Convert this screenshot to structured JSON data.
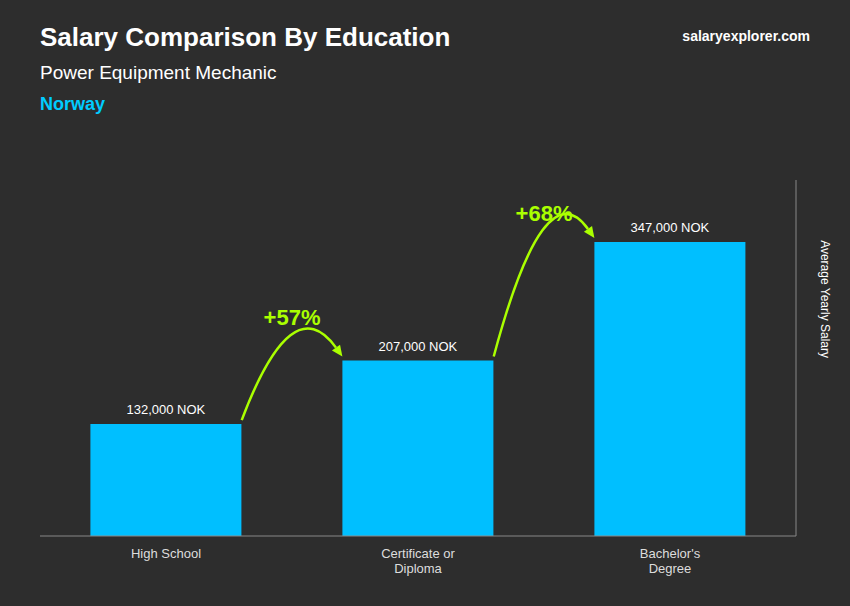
{
  "chart_data": {
    "type": "bar",
    "title": "Salary Comparison By Education",
    "subtitle": "Power Equipment Mechanic",
    "categories": [
      "High School",
      "Certificate or\nDiploma",
      "Bachelor's\nDegree"
    ],
    "values": [
      132000,
      207000,
      347000
    ],
    "value_labels": [
      "132,000 NOK",
      "207,000 NOK",
      "347,000 NOK"
    ],
    "data_labels": true,
    "color": "#00bfff",
    "ylabel": "Average Yearly Salary",
    "ylim": [
      0,
      420000
    ],
    "tick_labels": "x",
    "grid": false,
    "annotations": [
      {
        "text": "Norway",
        "color": "#00ccff"
      },
      {
        "text": "salaryexplorer.com"
      },
      {
        "text": "+57%",
        "color": "#aaff00"
      },
      {
        "text": "+68%",
        "color": "#aaff00"
      }
    ]
  }
}
